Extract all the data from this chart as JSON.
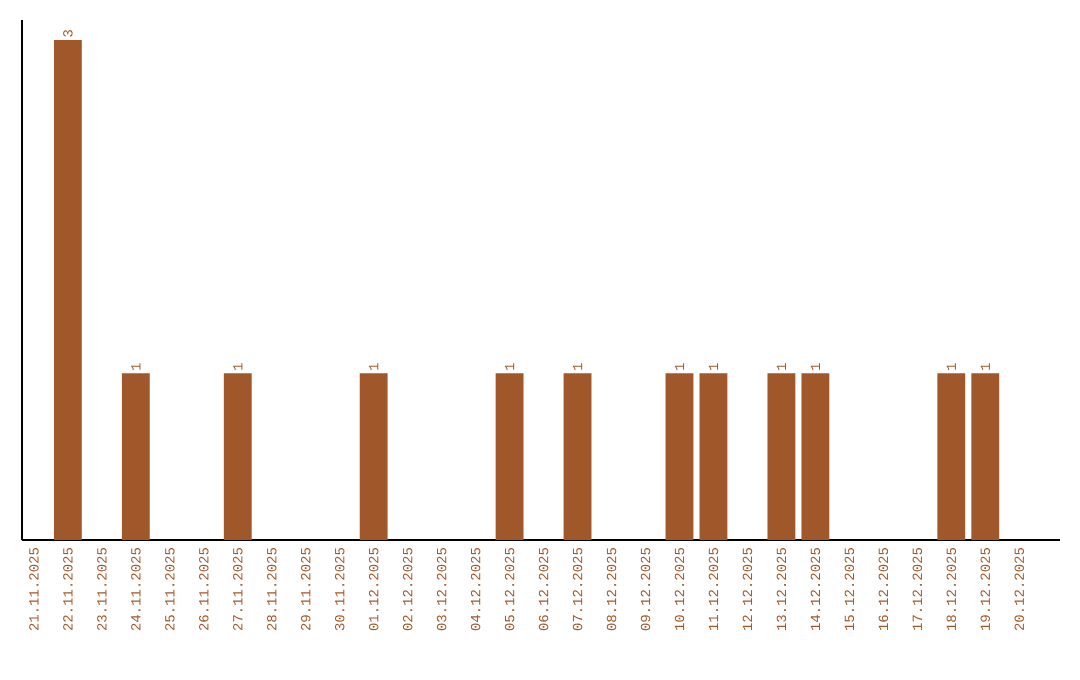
{
  "chart_data": {
    "type": "bar",
    "color": "#a0582a",
    "categories": [
      "21.11.2025",
      "22.11.2025",
      "23.11.2025",
      "24.11.2025",
      "25.11.2025",
      "26.11.2025",
      "27.11.2025",
      "28.11.2025",
      "29.11.2025",
      "30.11.2025",
      "01.12.2025",
      "02.12.2025",
      "03.12.2025",
      "04.12.2025",
      "05.12.2025",
      "06.12.2025",
      "07.12.2025",
      "08.12.2025",
      "09.12.2025",
      "10.12.2025",
      "11.12.2025",
      "12.12.2025",
      "13.12.2025",
      "14.12.2025",
      "15.12.2025",
      "16.12.2025",
      "17.12.2025",
      "18.12.2025",
      "19.12.2025",
      "20.12.2025"
    ],
    "values": [
      0,
      3,
      0,
      1,
      0,
      0,
      1,
      0,
      0,
      0,
      1,
      0,
      0,
      0,
      1,
      0,
      1,
      0,
      0,
      1,
      1,
      0,
      1,
      1,
      0,
      0,
      0,
      1,
      1,
      0
    ],
    "value_labels": [
      null,
      "3",
      null,
      "1",
      null,
      null,
      "1",
      null,
      null,
      null,
      "1",
      null,
      null,
      null,
      "1",
      null,
      "1",
      null,
      null,
      "1",
      "1",
      null,
      "1",
      "1",
      null,
      null,
      null,
      "1",
      "1",
      null
    ]
  }
}
